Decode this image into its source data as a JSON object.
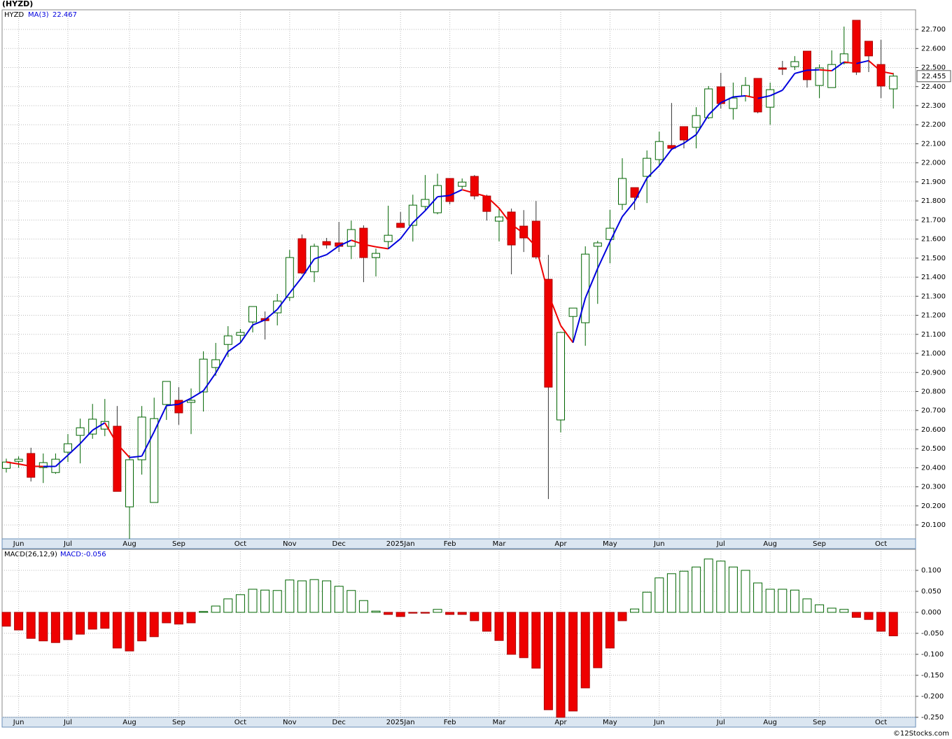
{
  "chart_data": [
    {
      "type": "candlestick",
      "title": "(HYZD)",
      "symbol": "HYZD",
      "categories": [
        null,
        "Jun",
        null,
        null,
        null,
        "Jul",
        null,
        null,
        null,
        null,
        "Aug",
        null,
        null,
        null,
        "Sep",
        null,
        null,
        null,
        null,
        "Oct",
        null,
        null,
        null,
        "Nov",
        null,
        null,
        null,
        "Dec",
        null,
        null,
        null,
        null,
        "2025Jan",
        null,
        null,
        null,
        "Feb",
        null,
        null,
        null,
        "Mar",
        null,
        null,
        null,
        null,
        "Apr",
        null,
        null,
        null,
        "May",
        null,
        null,
        null,
        "Jun",
        null,
        null,
        null,
        null,
        "Jul",
        null,
        null,
        null,
        "Aug",
        null,
        null,
        null,
        "Sep",
        null,
        null,
        null,
        null,
        "Oct",
        null
      ],
      "open": [
        20.397,
        20.434,
        20.475,
        20.401,
        20.375,
        20.482,
        20.57,
        20.577,
        20.603,
        20.618,
        20.195,
        20.442,
        20.218,
        20.732,
        20.754,
        20.743,
        20.798,
        20.926,
        21.047,
        21.095,
        21.165,
        21.183,
        21.213,
        21.294,
        21.602,
        21.429,
        21.587,
        21.58,
        21.562,
        21.657,
        21.503,
        21.587,
        21.683,
        21.672,
        21.771,
        21.738,
        21.918,
        21.877,
        21.929,
        21.826,
        21.694,
        21.742,
        21.668,
        21.694,
        21.389,
        20.651,
        21.194,
        21.161,
        21.562,
        21.598,
        21.782,
        21.87,
        21.929,
        22.017,
        22.091,
        22.19,
        22.186,
        22.237,
        22.399,
        22.285,
        22.351,
        22.443,
        22.292,
        22.498,
        22.505,
        22.586,
        22.406,
        22.395,
        22.524,
        22.748,
        22.638,
        22.516,
        22.388
      ],
      "high": [
        20.448,
        20.46,
        20.505,
        20.475,
        20.475,
        20.577,
        20.658,
        20.735,
        20.761,
        20.724,
        20.467,
        20.724,
        20.768,
        20.853,
        20.823,
        20.816,
        21.011,
        21.055,
        21.143,
        21.128,
        21.246,
        21.22,
        21.312,
        21.543,
        21.624,
        21.576,
        21.606,
        21.69,
        21.697,
        21.672,
        21.55,
        21.775,
        21.742,
        21.833,
        21.936,
        21.943,
        21.918,
        21.918,
        21.936,
        21.833,
        21.76,
        21.76,
        21.752,
        21.8,
        21.517,
        21.11,
        21.238,
        21.562,
        21.591,
        21.753,
        22.024,
        21.87,
        22.065,
        22.164,
        22.314,
        22.19,
        22.292,
        22.403,
        22.472,
        22.421,
        22.45,
        22.443,
        22.421,
        22.535,
        22.56,
        22.586,
        22.516,
        22.59,
        22.715,
        22.748,
        22.638,
        22.645,
        22.472
      ],
      "low": [
        20.375,
        20.4,
        20.328,
        20.32,
        20.368,
        20.43,
        20.423,
        20.552,
        20.566,
        20.276,
        20.027,
        20.364,
        20.218,
        20.651,
        20.625,
        20.577,
        20.695,
        20.882,
        20.981,
        21.055,
        21.11,
        21.073,
        21.147,
        21.275,
        21.415,
        21.374,
        21.55,
        21.532,
        21.495,
        21.374,
        21.404,
        21.547,
        21.661,
        21.587,
        21.753,
        21.73,
        21.782,
        21.863,
        21.808,
        21.697,
        21.587,
        21.415,
        21.532,
        21.495,
        20.236,
        20.585,
        21.055,
        21.04,
        21.26,
        21.473,
        21.753,
        21.753,
        21.789,
        21.98,
        22.065,
        22.076,
        22.076,
        22.23,
        22.285,
        22.227,
        22.322,
        22.26,
        22.2,
        22.461,
        22.487,
        22.395,
        22.34,
        22.395,
        22.516,
        22.461,
        22.476,
        22.34,
        22.285
      ],
      "close": [
        20.43,
        20.445,
        20.35,
        20.427,
        20.445,
        20.526,
        20.61,
        20.655,
        20.643,
        20.276,
        20.442,
        20.666,
        20.658,
        20.853,
        20.688,
        20.754,
        20.97,
        20.967,
        21.092,
        21.11,
        21.246,
        21.172,
        21.275,
        21.503,
        21.422,
        21.562,
        21.569,
        21.562,
        21.65,
        21.503,
        21.525,
        21.62,
        21.661,
        21.778,
        21.808,
        21.881,
        21.797,
        21.899,
        21.826,
        21.745,
        21.716,
        21.569,
        21.606,
        21.506,
        20.823,
        21.11,
        21.238,
        21.521,
        21.58,
        21.657,
        21.918,
        21.819,
        22.024,
        22.112,
        22.076,
        22.12,
        22.248,
        22.388,
        22.311,
        22.34,
        22.406,
        22.267,
        22.384,
        22.491,
        22.531,
        22.436,
        22.498,
        22.516,
        22.572,
        22.476,
        22.561,
        22.403,
        22.455
      ],
      "last_value": 22.455,
      "up_color": "#006400",
      "down_color": "#ee0000",
      "ma": {
        "name": "MA(3)",
        "last": 22.467,
        "up_color": "#0000dd",
        "down_color": "#ee0000",
        "values": [
          20.43,
          20.42,
          20.408,
          20.407,
          20.407,
          20.466,
          20.527,
          20.597,
          20.636,
          20.525,
          20.454,
          20.461,
          20.589,
          20.726,
          20.733,
          20.765,
          20.804,
          20.897,
          21.01,
          21.056,
          21.149,
          21.176,
          21.231,
          21.317,
          21.4,
          21.496,
          21.518,
          21.564,
          21.594,
          21.572,
          21.559,
          21.549,
          21.602,
          21.686,
          21.749,
          21.822,
          21.829,
          21.859,
          21.841,
          21.823,
          21.762,
          21.677,
          21.63,
          21.56,
          21.312,
          21.146,
          21.057,
          21.29,
          21.446,
          21.586,
          21.718,
          21.798,
          21.92,
          21.985,
          22.071,
          22.103,
          22.148,
          22.252,
          22.316,
          22.346,
          22.352,
          22.338,
          22.352,
          22.381,
          22.469,
          22.486,
          22.488,
          22.483,
          22.529,
          22.521,
          22.536,
          22.48,
          22.467
        ]
      },
      "ylim": [
        20.027,
        22.803
      ],
      "yticks": [
        {
          "value": 20.1,
          "label": "20.100"
        },
        {
          "value": 20.2,
          "label": "20.200"
        },
        {
          "value": 20.3,
          "label": "20.300"
        },
        {
          "value": 20.4,
          "label": "20.400"
        },
        {
          "value": 20.5,
          "label": "20.500"
        },
        {
          "value": 20.6,
          "label": "20.600"
        },
        {
          "value": 20.7,
          "label": "20.700"
        },
        {
          "value": 20.8,
          "label": "20.800"
        },
        {
          "value": 20.9,
          "label": "20.900"
        },
        {
          "value": 21.0,
          "label": "21.000"
        },
        {
          "value": 21.1,
          "label": "21.100"
        },
        {
          "value": 21.2,
          "label": "21.200"
        },
        {
          "value": 21.3,
          "label": "21.300"
        },
        {
          "value": 21.4,
          "label": "21.400"
        },
        {
          "value": 21.5,
          "label": "21.500"
        },
        {
          "value": 21.6,
          "label": "21.600"
        },
        {
          "value": 21.7,
          "label": "21.700"
        },
        {
          "value": 21.8,
          "label": "21.800"
        },
        {
          "value": 21.9,
          "label": "21.900"
        },
        {
          "value": 22.0,
          "label": "22.000"
        },
        {
          "value": 22.1,
          "label": "22.100"
        },
        {
          "value": 22.2,
          "label": "22.200"
        },
        {
          "value": 22.3,
          "label": "22.300"
        },
        {
          "value": 22.4,
          "label": "22.400"
        },
        {
          "value": 22.5,
          "label": "22.500"
        },
        {
          "value": 22.6,
          "label": "22.600"
        },
        {
          "value": 22.7,
          "label": "22.700"
        }
      ],
      "grid": true
    },
    {
      "type": "bar",
      "name": "MACD(26,12,9)",
      "label": "MACD:-0.056",
      "categories": [
        null,
        "Jun",
        null,
        null,
        null,
        "Jul",
        null,
        null,
        null,
        null,
        "Aug",
        null,
        null,
        null,
        "Sep",
        null,
        null,
        null,
        null,
        "Oct",
        null,
        null,
        null,
        "Nov",
        null,
        null,
        null,
        "Dec",
        null,
        null,
        null,
        null,
        "2025Jan",
        null,
        null,
        null,
        "Feb",
        null,
        null,
        null,
        "Mar",
        null,
        null,
        null,
        null,
        "Apr",
        null,
        null,
        null,
        "May",
        null,
        null,
        null,
        "Jun",
        null,
        null,
        null,
        null,
        "Jul",
        null,
        null,
        null,
        "Aug",
        null,
        null,
        null,
        "Sep",
        null,
        null,
        null,
        null,
        "Oct",
        null
      ],
      "values": [
        -0.033,
        -0.042,
        -0.062,
        -0.068,
        -0.072,
        -0.065,
        -0.052,
        -0.04,
        -0.038,
        -0.085,
        -0.092,
        -0.068,
        -0.058,
        -0.025,
        -0.028,
        -0.025,
        0.002,
        0.015,
        0.032,
        0.042,
        0.055,
        0.053,
        0.052,
        0.077,
        0.075,
        0.078,
        0.075,
        0.062,
        0.052,
        0.028,
        0.003,
        -0.005,
        -0.01,
        -0.002,
        -0.002,
        0.007,
        -0.005,
        -0.005,
        -0.02,
        -0.045,
        -0.067,
        -0.1,
        -0.108,
        -0.133,
        -0.232,
        -0.25,
        -0.235,
        -0.18,
        -0.132,
        -0.085,
        -0.02,
        0.008,
        0.048,
        0.082,
        0.092,
        0.098,
        0.108,
        0.127,
        0.122,
        0.108,
        0.1,
        0.07,
        0.055,
        0.055,
        0.053,
        0.032,
        0.018,
        0.01,
        0.007,
        -0.012,
        -0.017,
        -0.045,
        -0.056
      ],
      "up_color": "#006400",
      "down_color": "#ee0000",
      "ylim": [
        -0.25,
        0.15
      ],
      "yticks": [
        {
          "value": 0.1,
          "label": "0.100"
        },
        {
          "value": 0.05,
          "label": "0.050"
        },
        {
          "value": 0,
          "label": "0.000"
        },
        {
          "value": -0.05,
          "label": "-0.050"
        },
        {
          "value": -0.1,
          "label": "-0.100"
        },
        {
          "value": -0.15,
          "label": "-0.150"
        },
        {
          "value": -0.2,
          "label": "-0.200"
        },
        {
          "value": -0.25,
          "label": "-0.250"
        }
      ],
      "grid": true
    }
  ],
  "footer": "©12Stocks.com"
}
